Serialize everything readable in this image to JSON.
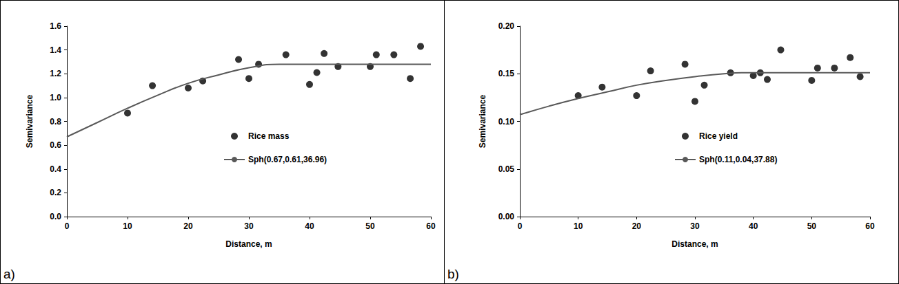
{
  "chart_data": [
    {
      "type": "scatter",
      "panel_label": "a)",
      "xlabel": "Distance, m",
      "ylabel": "Semivariance",
      "xlim": [
        0,
        60
      ],
      "xticks": [
        0,
        10,
        20,
        30,
        40,
        50,
        60
      ],
      "ylim": [
        0,
        1.6
      ],
      "yticks": [
        {
          "value": 0,
          "label": "0.0"
        },
        0.2,
        0.4,
        0.6,
        0.8,
        {
          "value": 1,
          "label": "1.0"
        },
        1.2,
        1.4,
        1.6
      ],
      "grid": false,
      "legend": "center",
      "series": [
        {
          "name": "Rice mass",
          "type": "scatter",
          "color": "#000000",
          "marker": "circle",
          "x": [
            10,
            14.1,
            20,
            22.4,
            28.3,
            30,
            31.6,
            36.1,
            40,
            41.2,
            42.4,
            44.7,
            50,
            51,
            53.9,
            56.6,
            58.3
          ],
          "values": [
            0.87,
            1.1,
            1.08,
            1.14,
            1.32,
            1.16,
            1.28,
            1.36,
            1.11,
            1.21,
            1.37,
            1.26,
            1.26,
            1.36,
            1.36,
            1.16,
            1.43
          ]
        },
        {
          "name": "Sph(0.67,0.61,36.96)",
          "type": "line",
          "color": "#595959",
          "line_style": "solid",
          "x": [
            0,
            5,
            10,
            15,
            20,
            25,
            30,
            35,
            37,
            60
          ],
          "values": [
            0.67,
            0.79,
            0.91,
            1.02,
            1.12,
            1.19,
            1.25,
            1.28,
            1.28,
            1.28
          ]
        }
      ]
    },
    {
      "type": "scatter",
      "panel_label": "b)",
      "xlabel": "Distance, m",
      "ylabel": "Semivariance",
      "xlim": [
        0,
        60
      ],
      "xticks": [
        0,
        10,
        20,
        30,
        40,
        50,
        60
      ],
      "ylim": [
        0,
        0.2
      ],
      "yticks": [
        {
          "value": 0,
          "label": "0.00"
        },
        {
          "value": 0.05,
          "label": "0.05"
        },
        {
          "value": 0.1,
          "label": "0.10"
        },
        {
          "value": 0.15,
          "label": "0.15"
        },
        {
          "value": 0.2,
          "label": "0.20"
        }
      ],
      "grid": false,
      "legend": "center",
      "series": [
        {
          "name": "Rice yield",
          "type": "scatter",
          "color": "#000000",
          "marker": "circle",
          "x": [
            10,
            14.1,
            20,
            22.4,
            28.3,
            30,
            31.6,
            36.1,
            40,
            41.2,
            42.4,
            44.7,
            50,
            51,
            53.9,
            56.6,
            58.3
          ],
          "values": [
            0.127,
            0.136,
            0.127,
            0.153,
            0.16,
            0.121,
            0.138,
            0.151,
            0.148,
            0.151,
            0.144,
            0.175,
            0.143,
            0.156,
            0.156,
            0.167,
            0.147
          ]
        },
        {
          "name": "Sph(0.11,0.04,37.88)",
          "type": "line",
          "color": "#595959",
          "line_style": "solid",
          "x": [
            0,
            5,
            10,
            15,
            20,
            25,
            30,
            35,
            38,
            60
          ],
          "values": [
            0.107,
            0.116,
            0.124,
            0.131,
            0.138,
            0.143,
            0.147,
            0.15,
            0.151,
            0.151
          ]
        }
      ]
    }
  ]
}
